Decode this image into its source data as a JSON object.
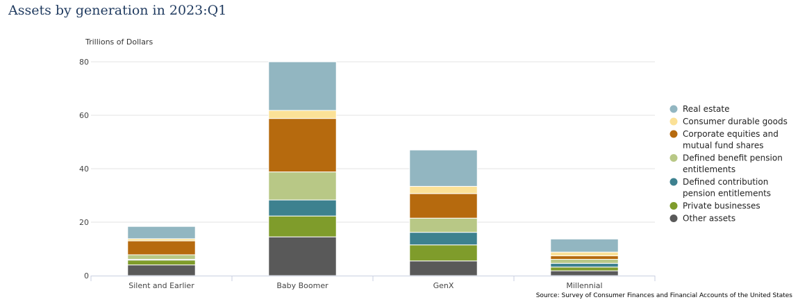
{
  "chart_data": {
    "type": "bar",
    "stacked": true,
    "title": "Assets by generation in 2023:Q1",
    "ylabel": "Trillions of Dollars",
    "xlabel": "",
    "ylim": [
      0,
      80
    ],
    "yticks": [
      0,
      20,
      40,
      60,
      80
    ],
    "grid": true,
    "legend_position": "right",
    "categories": [
      "Silent and Earlier",
      "Baby Boomer",
      "GenX",
      "Millennial"
    ],
    "series": [
      {
        "name": "Other assets",
        "color": "#595959",
        "values": [
          4.0,
          14.5,
          5.5,
          1.8
        ]
      },
      {
        "name": "Private businesses",
        "color": "#7f9c2b",
        "values": [
          1.8,
          7.8,
          6.0,
          1.4
        ]
      },
      {
        "name": "Defined contribution pension entitlements",
        "color": "#3d818f",
        "values": [
          0.3,
          6.0,
          4.7,
          1.4
        ]
      },
      {
        "name": "Defined benefit pension entitlements",
        "color": "#b8c886",
        "values": [
          1.7,
          10.5,
          5.3,
          1.5
        ]
      },
      {
        "name": "Corporate equities and mutual fund shares",
        "color": "#b66a0e",
        "values": [
          5.2,
          20.0,
          9.2,
          1.3
        ]
      },
      {
        "name": "Consumer durable goods",
        "color": "#fbe197",
        "values": [
          0.8,
          3.0,
          2.7,
          1.4
        ]
      },
      {
        "name": "Real estate",
        "color": "#92b6c1",
        "values": [
          4.6,
          18.2,
          13.6,
          4.9
        ]
      }
    ],
    "source": "Source: Survey of Consumer Finances and Financial Accounts of the United States"
  }
}
